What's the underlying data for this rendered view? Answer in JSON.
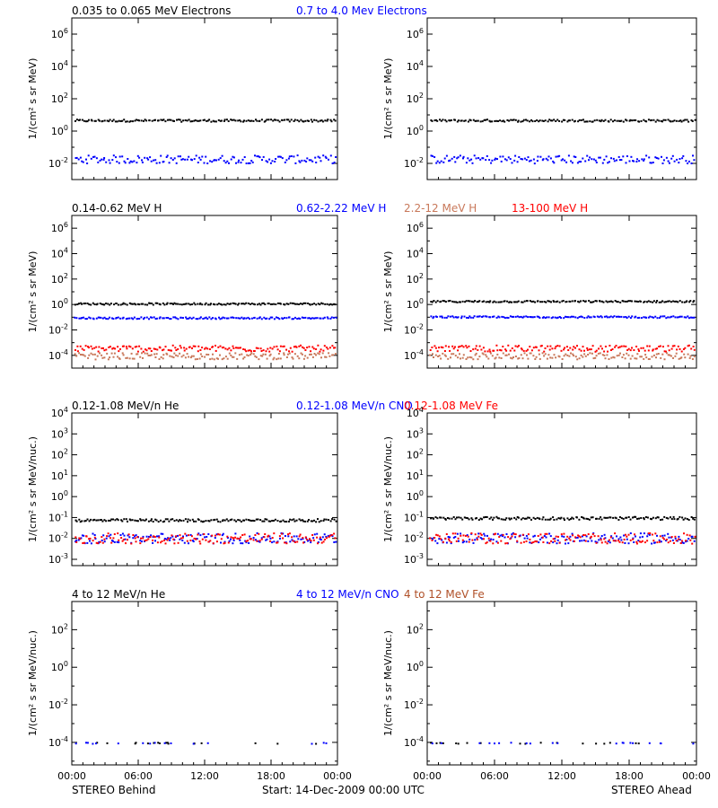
{
  "colors": {
    "black": "#000000",
    "blue": "#0000ff",
    "tan": "#c8785a",
    "red": "#ff0000",
    "brown": "#b05028"
  },
  "footer": {
    "left": "STEREO Behind",
    "center": "Start: 14-Dec-2009 00:00 UTC",
    "right": "STEREO Ahead"
  },
  "x_axis": {
    "ticks": [
      "00:00",
      "06:00",
      "12:00",
      "18:00",
      "00:00"
    ]
  },
  "chart_data": [
    {
      "type": "scatter",
      "panel": "electrons-behind",
      "log_y": true,
      "ylim_exp": [
        -3,
        7
      ],
      "y_tick_exps": [
        -2,
        0,
        2,
        4,
        6
      ],
      "ylabel": "1/(cm² s sr MeV)",
      "title_parts": [
        {
          "text": "0.035 to 0.065 MeV Electrons",
          "color": "#000000"
        },
        {
          "text": "0.7 to 4.0 Mev Electrons",
          "color": "#0000ff"
        }
      ],
      "series": [
        {
          "name": "0.035 to 0.065 MeV Electrons",
          "color": "#000000",
          "level": 5.0
        },
        {
          "name": "0.7 to 4.0 Mev Electrons",
          "color": "#0000ff",
          "level": 0.02
        }
      ]
    },
    {
      "type": "scatter",
      "panel": "electrons-ahead",
      "log_y": true,
      "ylim_exp": [
        -3,
        7
      ],
      "y_tick_exps": [
        -2,
        0,
        2,
        4,
        6
      ],
      "ylabel": "1/(cm² s sr MeV)",
      "title_parts": [],
      "series": [
        {
          "color": "#000000",
          "level": 5.0
        },
        {
          "color": "#0000ff",
          "level": 0.02
        }
      ]
    },
    {
      "type": "scatter",
      "panel": "protons-behind",
      "log_y": true,
      "ylim_exp": [
        -5,
        7
      ],
      "y_tick_exps": [
        -4,
        -2,
        0,
        2,
        4,
        6
      ],
      "ylabel": "1/(cm² s sr MeV)",
      "title_parts": [
        {
          "text": "0.14-0.62 MeV H",
          "color": "#000000"
        },
        {
          "text": "0.62-2.22 MeV H",
          "color": "#0000ff"
        },
        {
          "text": "2.2-12 MeV H",
          "color": "#c8785a"
        },
        {
          "text": "13-100 MeV H",
          "color": "#ff0000"
        }
      ],
      "series": [
        {
          "name": "0.14-0.62 MeV H",
          "color": "#000000",
          "level": 1.3
        },
        {
          "name": "0.62-2.22 MeV H",
          "color": "#0000ff",
          "level": 0.1
        },
        {
          "name": "13-100 MeV H",
          "color": "#ff0000",
          "level": 0.0004
        },
        {
          "name": "2.2-12 MeV H",
          "color": "#c8785a",
          "level": 0.0001
        }
      ]
    },
    {
      "type": "scatter",
      "panel": "protons-ahead",
      "log_y": true,
      "ylim_exp": [
        -5,
        7
      ],
      "y_tick_exps": [
        -4,
        -2,
        0,
        2,
        4,
        6
      ],
      "ylabel": "1/(cm² s sr MeV)",
      "title_parts": [],
      "series": [
        {
          "color": "#000000",
          "level": 2.0
        },
        {
          "color": "#0000ff",
          "level": 0.12
        },
        {
          "color": "#ff0000",
          "level": 0.0004
        },
        {
          "color": "#c8785a",
          "level": 0.0001
        }
      ]
    },
    {
      "type": "scatter",
      "panel": "ions-low-behind",
      "log_y": true,
      "ylim_exp": [
        -3.3,
        4
      ],
      "y_tick_exps": [
        -3,
        -2,
        -1,
        0,
        1,
        2,
        3,
        4
      ],
      "ylabel": "1/(cm² s sr MeV/nuc.)",
      "title_parts": [
        {
          "text": "0.12-1.08 MeV/n He",
          "color": "#000000"
        },
        {
          "text": "0.12-1.08 MeV/n CNO",
          "color": "#0000ff"
        },
        {
          "text": "0.12-1.08 MeV Fe",
          "color": "#ff0000"
        }
      ],
      "series": [
        {
          "name": "0.12-1.08 MeV/n He",
          "color": "#000000",
          "level": 0.08
        },
        {
          "name": "0.12-1.08 MeV/n CNO",
          "color": "#0000ff",
          "level": 0.011
        },
        {
          "name": "0.12-1.08 MeV Fe",
          "color": "#ff0000",
          "level": 0.011
        }
      ]
    },
    {
      "type": "scatter",
      "panel": "ions-low-ahead",
      "log_y": true,
      "ylim_exp": [
        -3.3,
        4
      ],
      "y_tick_exps": [
        -3,
        -2,
        -1,
        0,
        1,
        2,
        3,
        4
      ],
      "ylabel": "1/(cm² s sr MeV/nuc.)",
      "title_parts": [],
      "series": [
        {
          "color": "#000000",
          "level": 0.1
        },
        {
          "color": "#0000ff",
          "level": 0.011
        },
        {
          "color": "#ff0000",
          "level": 0.011
        }
      ]
    },
    {
      "type": "scatter",
      "panel": "ions-high-behind",
      "log_y": true,
      "ylim_exp": [
        -5.2,
        3.5
      ],
      "y_tick_exps": [
        -4,
        -2,
        0,
        2
      ],
      "ylabel": "1/(cm² s sr MeV/nuc.)",
      "title_parts": [
        {
          "text": "4 to 12 MeV/n He",
          "color": "#000000"
        },
        {
          "text": "4 to 12 MeV/n CNO",
          "color": "#0000ff"
        },
        {
          "text": "4 to 12 MeV Fe",
          "color": "#b05028"
        }
      ],
      "series": [
        {
          "name": "4 to 12 MeV/n He",
          "color": "#000000",
          "level": 0.0001
        },
        {
          "name": "4 to 12 MeV/n CNO",
          "color": "#0000ff",
          "level": 0.0001
        }
      ]
    },
    {
      "type": "scatter",
      "panel": "ions-high-ahead",
      "log_y": true,
      "ylim_exp": [
        -5.2,
        3.5
      ],
      "y_tick_exps": [
        -4,
        -2,
        0,
        2
      ],
      "ylabel": "1/(cm² s sr MeV/nuc.)",
      "title_parts": [],
      "series": [
        {
          "color": "#000000",
          "level": 0.0001
        },
        {
          "color": "#0000ff",
          "level": 0.0001
        }
      ]
    }
  ]
}
